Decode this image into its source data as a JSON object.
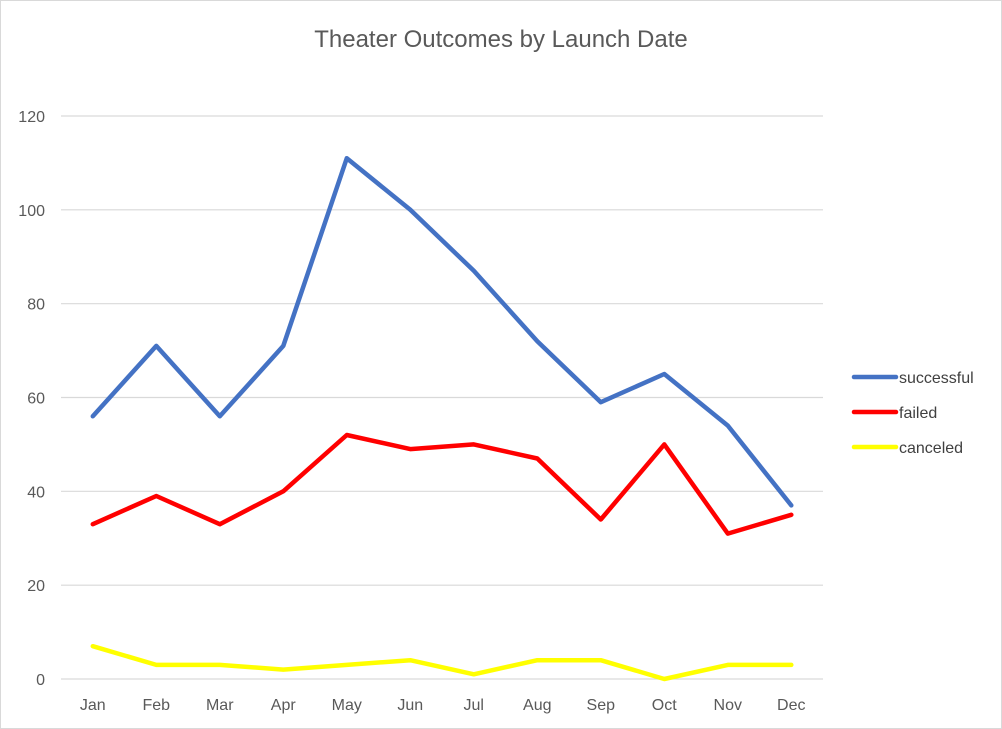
{
  "chart_data": {
    "type": "line",
    "title": "Theater Outcomes by Launch Date",
    "xlabel": "",
    "ylabel": "",
    "categories": [
      "Jan",
      "Feb",
      "Mar",
      "Apr",
      "May",
      "Jun",
      "Jul",
      "Aug",
      "Sep",
      "Oct",
      "Nov",
      "Dec"
    ],
    "ylim": [
      0,
      120
    ],
    "yticks": [
      0,
      20,
      40,
      60,
      80,
      100,
      120
    ],
    "grid": true,
    "legend_position": "right",
    "series": [
      {
        "name": "successful",
        "color": "#4472c4",
        "values": [
          56,
          71,
          56,
          71,
          111,
          100,
          87,
          72,
          59,
          65,
          54,
          37
        ]
      },
      {
        "name": "failed",
        "color": "#ff0000",
        "values": [
          33,
          39,
          33,
          40,
          52,
          49,
          50,
          47,
          34,
          50,
          31,
          35
        ]
      },
      {
        "name": "canceled",
        "color": "#ffff00",
        "values": [
          7,
          3,
          3,
          2,
          3,
          4,
          1,
          4,
          4,
          0,
          3,
          3
        ]
      }
    ]
  }
}
